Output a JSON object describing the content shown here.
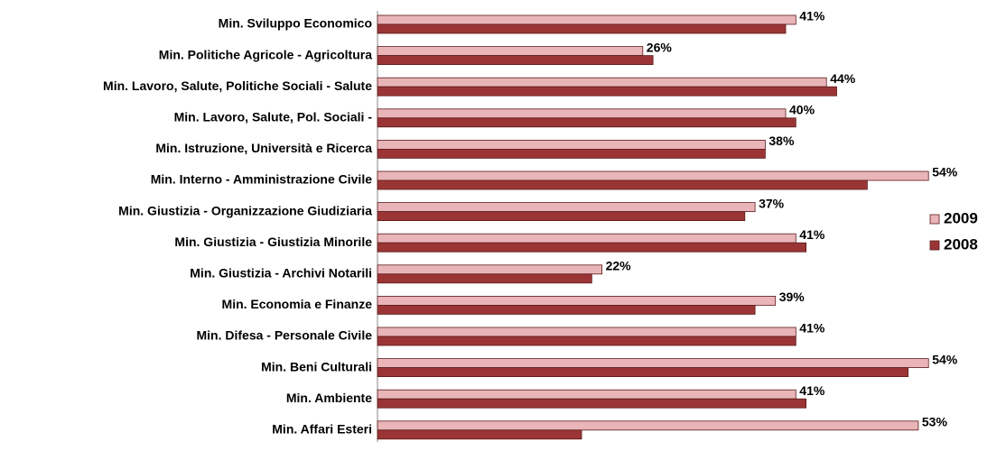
{
  "chart_data": {
    "type": "bar",
    "orientation": "horizontal",
    "categories": [
      "Min. Sviluppo Economico",
      "Min. Politiche Agricole - Agricoltura",
      "Min. Lavoro, Salute, Politiche Sociali - Salute",
      "Min. Lavoro, Salute, Pol. Sociali -",
      "Min. Istruzione, Università e Ricerca",
      "Min. Interno - Amministrazione Civile",
      "Min. Giustizia - Organizzazione Giudiziaria",
      "Min. Giustizia - Giustizia Minorile",
      "Min. Giustizia - Archivi Notarili",
      "Min. Economia e Finanze",
      "Min. Difesa - Personale Civile",
      "Min. Beni Culturali",
      "Min. Ambiente",
      "Min. Affari Esteri"
    ],
    "series": [
      {
        "name": "2009",
        "color": "#e9b5b9",
        "values": [
          41,
          26,
          44,
          40,
          38,
          54,
          37,
          41,
          22,
          39,
          41,
          54,
          41,
          53
        ],
        "value_labels": [
          "41%",
          "26%",
          "44%",
          "40%",
          "38%",
          "54%",
          "37%",
          "41%",
          "22%",
          "39%",
          "41%",
          "54%",
          "41%",
          "53%"
        ]
      },
      {
        "name": "2008",
        "color": "#9b3535",
        "values": [
          40,
          27,
          45,
          41,
          38,
          48,
          36,
          42,
          21,
          37,
          41,
          52,
          42,
          20
        ]
      }
    ],
    "legend": "right"
  }
}
